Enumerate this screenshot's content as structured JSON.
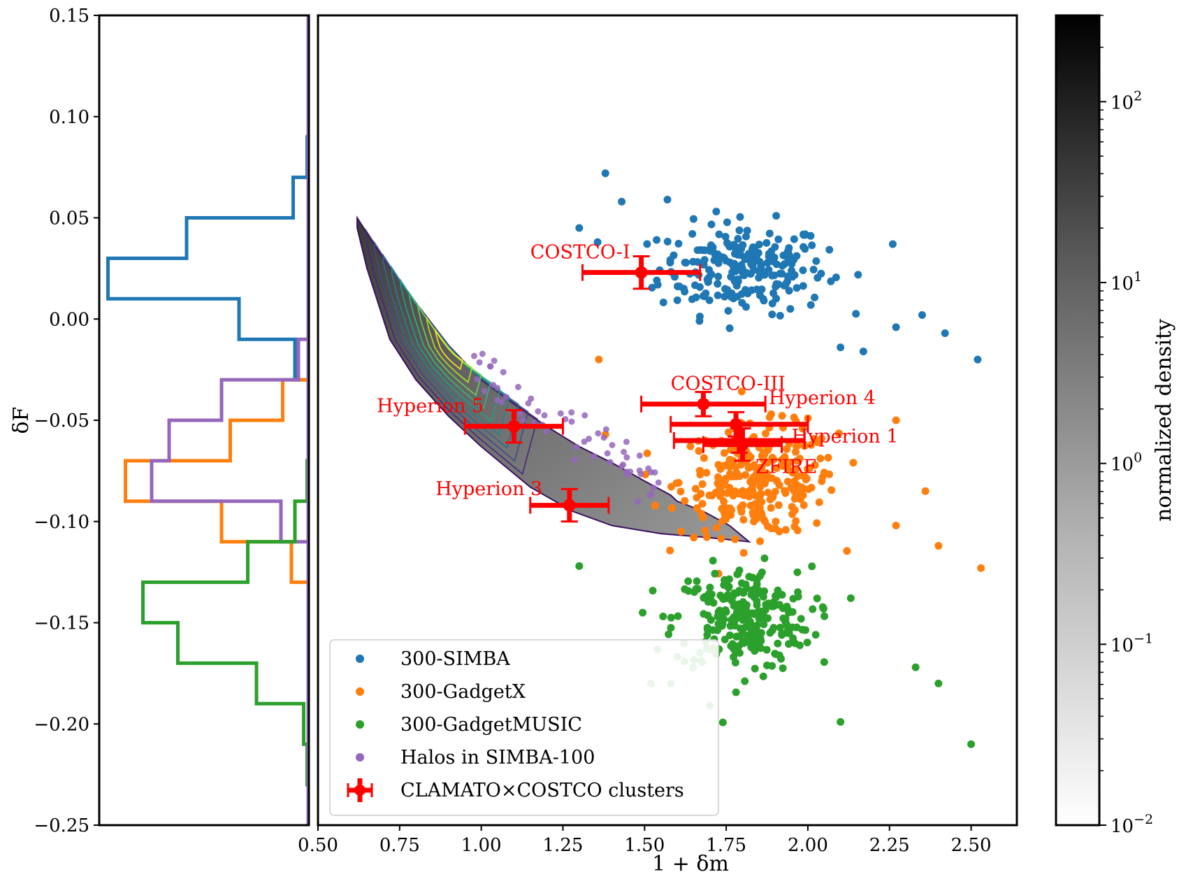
{
  "chart_data": {
    "type": "scatter",
    "xlabel": "1 + δm",
    "ylabel": "δF",
    "xlim": [
      0.5,
      2.64
    ],
    "ylim": [
      -0.25,
      0.15
    ],
    "xticks": [
      "0.50",
      "0.75",
      "1.00",
      "1.25",
      "1.50",
      "1.75",
      "2.00",
      "2.25",
      "2.50"
    ],
    "yticks": [
      "0.15",
      "0.10",
      "0.05",
      "0.00",
      "−0.05",
      "−0.10",
      "−0.15",
      "−0.20",
      "−0.25"
    ],
    "colorbar": {
      "label": "normalized density",
      "scale": "log",
      "range": [
        0.01,
        300
      ],
      "tick_labels": [
        {
          "base": "10",
          "exp": "2"
        },
        {
          "base": "10",
          "exp": "1"
        },
        {
          "base": "10",
          "exp": "0"
        },
        {
          "base": "10",
          "exp": "−1"
        },
        {
          "base": "10",
          "exp": "−2"
        }
      ]
    },
    "series": [
      {
        "name": "300-SIMBA",
        "color": "#1f77b4",
        "kind": "scatter",
        "center": [
          1.8,
          0.025
        ],
        "spread": [
          0.17,
          0.015
        ],
        "count": 230,
        "extra_points": [
          [
            1.38,
            0.072
          ],
          [
            1.43,
            0.058
          ],
          [
            1.3,
            0.045
          ],
          [
            1.57,
            0.059
          ],
          [
            2.26,
            0.037
          ],
          [
            2.35,
            0.002
          ],
          [
            2.27,
            -0.004
          ],
          [
            2.42,
            -0.007
          ],
          [
            2.52,
            -0.02
          ],
          [
            2.1,
            -0.014
          ],
          [
            2.17,
            -0.016
          ]
        ]
      },
      {
        "name": "300-GadgetX",
        "color": "#ff7f0e",
        "kind": "scatter",
        "center": [
          1.85,
          -0.08
        ],
        "spread": [
          0.16,
          0.018
        ],
        "count": 280,
        "extra_points": [
          [
            1.38,
            -0.057
          ],
          [
            1.36,
            -0.02
          ],
          [
            2.27,
            -0.05
          ],
          [
            2.36,
            -0.085
          ],
          [
            2.4,
            -0.112
          ],
          [
            2.53,
            -0.123
          ],
          [
            2.27,
            -0.102
          ],
          [
            2.0,
            -0.049
          ]
        ]
      },
      {
        "name": "300-GadgetMUSIC",
        "color": "#2ca02c",
        "kind": "scatter",
        "center": [
          1.8,
          -0.148
        ],
        "spread": [
          0.14,
          0.017
        ],
        "count": 260,
        "extra_points": [
          [
            1.3,
            -0.122
          ],
          [
            2.5,
            -0.21
          ],
          [
            2.4,
            -0.18
          ],
          [
            2.33,
            -0.172
          ],
          [
            1.52,
            -0.18
          ],
          [
            1.58,
            -0.18
          ],
          [
            1.7,
            -0.191
          ],
          [
            2.1,
            -0.199
          ]
        ]
      },
      {
        "name": "Halos in SIMBA-100",
        "color": "#9467bd",
        "kind": "scatter_along_band",
        "count": 60
      }
    ],
    "band": {
      "outline": [
        [
          0.62,
          0.05
        ],
        [
          0.7,
          0.03
        ],
        [
          0.8,
          0.008
        ],
        [
          0.9,
          -0.013
        ],
        [
          1.0,
          -0.03
        ],
        [
          1.1,
          -0.042
        ],
        [
          1.2,
          -0.053
        ],
        [
          1.3,
          -0.063
        ],
        [
          1.4,
          -0.071
        ],
        [
          1.5,
          -0.08
        ],
        [
          1.58,
          -0.087
        ],
        [
          1.6,
          -0.09
        ],
        [
          1.68,
          -0.095
        ],
        [
          1.76,
          -0.102
        ],
        [
          1.82,
          -0.11
        ],
        [
          1.7,
          -0.108
        ],
        [
          1.55,
          -0.106
        ],
        [
          1.4,
          -0.102
        ],
        [
          1.28,
          -0.095
        ],
        [
          1.15,
          -0.083
        ],
        [
          1.0,
          -0.063
        ],
        [
          0.9,
          -0.048
        ],
        [
          0.8,
          -0.03
        ],
        [
          0.72,
          -0.01
        ],
        [
          0.65,
          0.025
        ],
        [
          0.62,
          0.045
        ]
      ],
      "contour_colors": [
        "#482878",
        "#3e4a89",
        "#31688e",
        "#26828e",
        "#1f9e89",
        "#35b779",
        "#6ece58",
        "#b5de2b",
        "#fde725"
      ]
    },
    "clusters": [
      {
        "name": "COSTCO-I",
        "x": 1.49,
        "y": 0.023,
        "xerr": [
          0.18,
          0.18
        ],
        "yerr": [
          0.008,
          0.008
        ],
        "label_at": [
          1.15,
          0.03
        ]
      },
      {
        "name": "COSTCO-III",
        "x": 1.68,
        "y": -0.042,
        "xerr": [
          0.19,
          0.19
        ],
        "yerr": [
          0.006,
          0.006
        ],
        "label_at": [
          1.58,
          -0.035
        ]
      },
      {
        "name": "Hyperion 4",
        "x": 1.78,
        "y": -0.052,
        "xerr": [
          0.2,
          0.22
        ],
        "yerr": [
          0.006,
          0.006
        ],
        "label_at": [
          1.88,
          -0.042
        ]
      },
      {
        "name": "Hyperion 1",
        "x": 1.79,
        "y": -0.06,
        "xerr": [
          0.2,
          0.2
        ],
        "yerr": [
          0.006,
          0.006
        ],
        "label_at": [
          1.95,
          -0.061
        ]
      },
      {
        "name": "ZFIRE",
        "x": 1.8,
        "y": -0.062,
        "xerr": [
          0.12,
          0.12
        ],
        "yerr": [
          0.008,
          0.008
        ],
        "label_at": [
          1.84,
          -0.076
        ]
      },
      {
        "name": "Hyperion 5",
        "x": 1.1,
        "y": -0.053,
        "xerr": [
          0.15,
          0.15
        ],
        "yerr": [
          0.008,
          0.008
        ],
        "label_at": [
          0.68,
          -0.046
        ]
      },
      {
        "name": "Hyperion 3",
        "x": 1.27,
        "y": -0.092,
        "xerr": [
          0.12,
          0.12
        ],
        "yerr": [
          0.008,
          0.008
        ],
        "label_at": [
          0.86,
          -0.087
        ]
      }
    ],
    "histograms": [
      {
        "name": "300-SIMBA",
        "color": "#1f77b4",
        "bins": [
          [
            0.09,
            0.07,
            0.1
          ],
          [
            0.07,
            0.05,
            0.9
          ],
          [
            0.05,
            0.03,
            7.0
          ],
          [
            0.03,
            0.01,
            11.5
          ],
          [
            0.01,
            -0.01,
            4.0
          ],
          [
            -0.01,
            -0.03,
            0.8
          ]
        ]
      },
      {
        "name": "300-GadgetX",
        "color": "#ff7f0e",
        "bins": [
          [
            -0.03,
            -0.05,
            1.5
          ],
          [
            -0.05,
            -0.07,
            4.5
          ],
          [
            -0.07,
            -0.09,
            10.5
          ],
          [
            -0.09,
            -0.11,
            5.0
          ],
          [
            -0.11,
            -0.13,
            1.0
          ]
        ]
      },
      {
        "name": "Halos in SIMBA-100",
        "color": "#9467bd",
        "bins": [
          [
            -0.01,
            -0.03,
            0.6
          ],
          [
            -0.03,
            -0.05,
            5.0
          ],
          [
            -0.05,
            -0.07,
            8.0
          ],
          [
            -0.07,
            -0.09,
            9.0
          ],
          [
            -0.09,
            -0.11,
            1.6
          ]
        ]
      },
      {
        "name": "300-GadgetMUSIC",
        "color": "#2ca02c",
        "bins": [
          [
            -0.07,
            -0.09,
            0.1
          ],
          [
            -0.09,
            -0.11,
            0.8
          ],
          [
            -0.11,
            -0.13,
            3.5
          ],
          [
            -0.13,
            -0.15,
            9.5
          ],
          [
            -0.15,
            -0.17,
            7.5
          ],
          [
            -0.17,
            -0.19,
            3.0
          ],
          [
            -0.19,
            -0.21,
            0.3
          ],
          [
            -0.21,
            -0.23,
            0.1
          ]
        ]
      }
    ],
    "legend": {
      "location": "lower-left",
      "entries": [
        {
          "label": "300-SIMBA",
          "color": "#1f77b4",
          "marker": "dot"
        },
        {
          "label": "300-GadgetX",
          "color": "#ff7f0e",
          "marker": "dot"
        },
        {
          "label": "300-GadgetMUSIC",
          "color": "#2ca02c",
          "marker": "dot"
        },
        {
          "label": "Halos in SIMBA-100",
          "color": "#9467bd",
          "marker": "dot"
        },
        {
          "label": "CLAMATO×COSTCO clusters",
          "color": "#ff0000",
          "marker": "errorbar"
        }
      ]
    }
  }
}
